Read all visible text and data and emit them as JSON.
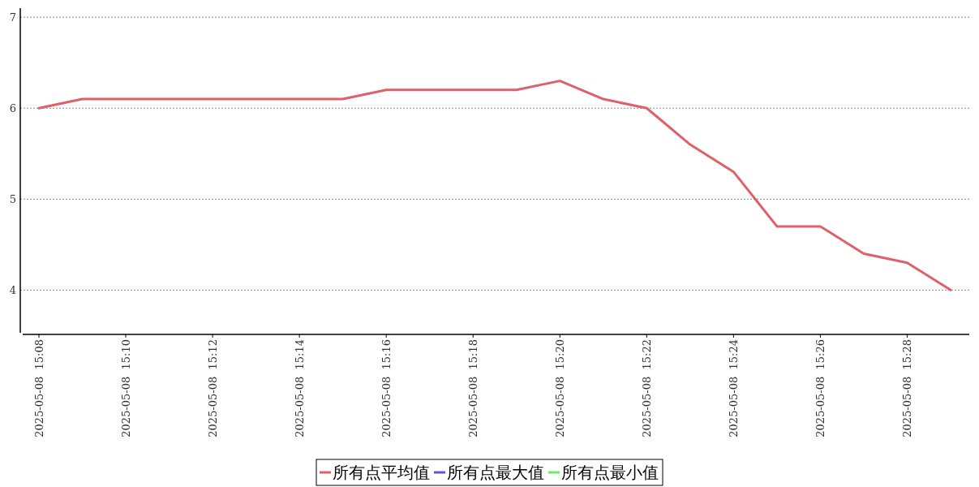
{
  "chart_data": {
    "type": "line",
    "categories": [
      "2025-05-08  15:08",
      null,
      "2025-05-08  15:10",
      null,
      "2025-05-08  15:12",
      null,
      "2025-05-08  15:14",
      null,
      "2025-05-08  15:16",
      null,
      "2025-05-08  15:18",
      null,
      "2025-05-08  15:20",
      null,
      "2025-05-08  15:22",
      null,
      "2025-05-08  15:24",
      null,
      "2025-05-08  15:26",
      null,
      "2025-05-08  15:28",
      null
    ],
    "series": [
      {
        "name": "所有点平均值",
        "color": "#e0606a",
        "values": [
          6.0,
          6.1,
          6.1,
          6.1,
          6.1,
          6.1,
          6.1,
          6.1,
          6.2,
          6.2,
          6.2,
          6.2,
          6.3,
          6.1,
          6.0,
          5.6,
          5.3,
          4.7,
          4.7,
          4.4,
          4.3,
          4.0
        ]
      },
      {
        "name": "所有点最大值",
        "color": "#5b5bd6",
        "values": [
          null,
          null,
          null,
          null,
          null,
          null,
          null,
          null,
          null,
          null,
          null,
          null,
          null,
          null,
          null,
          null,
          null,
          null,
          null,
          null,
          null,
          null
        ]
      },
      {
        "name": "所有点最小值",
        "color": "#66ee66",
        "values": [
          null,
          null,
          null,
          null,
          null,
          null,
          null,
          null,
          null,
          null,
          null,
          null,
          null,
          null,
          null,
          null,
          null,
          null,
          null,
          null,
          null,
          null
        ]
      }
    ],
    "ylim": [
      3.53,
      7.1
    ],
    "yticks": [
      4,
      5,
      6,
      7
    ],
    "grid": "y",
    "legend": "bottom"
  }
}
